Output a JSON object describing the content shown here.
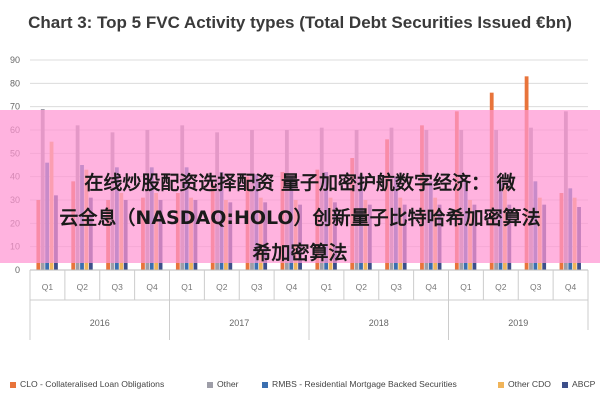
{
  "title": "Chart 3: Top 5 FVC Activity types (Total Debt Securities Issued €bn)",
  "overlay": {
    "line1": "在线炒股配资选择配资 量子加密护航数字经济： 微",
    "line2": "云全息（NASDAQ:HOLO）创新量子比特哈希加密算法",
    "line3": "希加密算法"
  },
  "colors": {
    "CLO": "#e8743b",
    "Other": "#9e9ea8",
    "RMBS": "#3b6fb0",
    "OtherCDO": "#f0b45a",
    "ABCP": "#3d4f8a",
    "overlay": "#ff96d2"
  },
  "chart_data": {
    "type": "bar",
    "title": "Chart 3: Top 5 FVC Activity types (Total Debt Securities Issued €bn)",
    "xlabel": "",
    "ylabel": "",
    "ylim": [
      0,
      90
    ],
    "yticks": [
      0,
      10,
      20,
      30,
      40,
      50,
      60,
      70,
      80,
      90
    ],
    "grid": true,
    "legend_position": "bottom",
    "categories": [
      "Q1",
      "Q2",
      "Q3",
      "Q4",
      "Q1",
      "Q2",
      "Q3",
      "Q4",
      "Q1",
      "Q2",
      "Q3",
      "Q4",
      "Q1",
      "Q2",
      "Q3",
      "Q4"
    ],
    "years": [
      "2016",
      "2017",
      "2018",
      "2019"
    ],
    "series": [
      {
        "name": "CLO - Collateralised Loan Obligations",
        "key": "CLO",
        "values": [
          30,
          38,
          30,
          31,
          33,
          37,
          40,
          42,
          43,
          48,
          56,
          62,
          68,
          76,
          83,
          33
        ]
      },
      {
        "name": "Other",
        "key": "Other",
        "values": [
          69,
          62,
          59,
          60,
          62,
          59,
          60,
          60,
          61,
          60,
          61,
          60,
          60,
          60,
          61,
          68
        ]
      },
      {
        "name": "RMBS - Residential Mortgage Backed Securities",
        "key": "RMBS",
        "values": [
          46,
          45,
          44,
          44,
          44,
          42,
          41,
          40,
          42,
          41,
          40,
          38,
          38,
          37,
          38,
          35
        ]
      },
      {
        "name": "Other CDO",
        "key": "OtherCDO",
        "values": [
          55,
          43,
          33,
          33,
          31,
          30,
          31,
          30,
          31,
          30,
          31,
          31,
          30,
          36,
          31,
          31
        ]
      },
      {
        "name": "ABCP",
        "key": "ABCP",
        "values": [
          32,
          31,
          30,
          30,
          30,
          29,
          29,
          28,
          29,
          28,
          28,
          28,
          28,
          28,
          28,
          27
        ]
      }
    ]
  }
}
